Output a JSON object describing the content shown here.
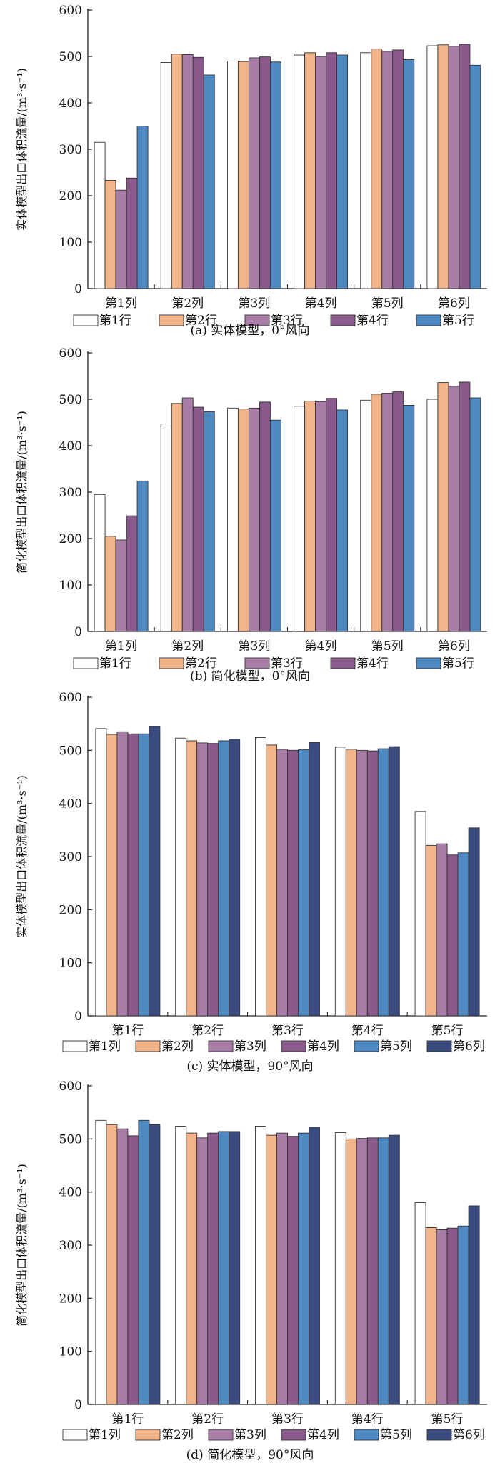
{
  "colors": {
    "row_series": [
      "#ffffff",
      "#f2b48a",
      "#a77ca6",
      "#8a5a8c",
      "#4f89c2"
    ],
    "col_series": [
      "#ffffff",
      "#f2b48a",
      "#a77ca6",
      "#8a5a8c",
      "#4f89c2",
      "#3a4b80"
    ]
  },
  "chart_data": [
    {
      "type": "bar",
      "caption": "(a) 实体模型，0°风向",
      "ylabel": "实体模型出口体积流量/(m³·s⁻¹)",
      "ylim": [
        0,
        600
      ],
      "yticks": [
        "0",
        "100",
        "200",
        "300",
        "400",
        "500",
        "600"
      ],
      "categories": [
        "第1列",
        "第2列",
        "第3列",
        "第4列",
        "第5列",
        "第6列"
      ],
      "legend_placement": "bottom",
      "series": [
        {
          "name": "第1行",
          "values": [
            315,
            487,
            490,
            503,
            508,
            523
          ]
        },
        {
          "name": "第2行",
          "values": [
            233,
            505,
            489,
            508,
            516,
            525
          ]
        },
        {
          "name": "第3行",
          "values": [
            212,
            504,
            497,
            500,
            511,
            522
          ]
        },
        {
          "name": "第4行",
          "values": [
            238,
            498,
            499,
            508,
            514,
            526
          ]
        },
        {
          "name": "第5行",
          "values": [
            350,
            460,
            488,
            503,
            493,
            481
          ]
        }
      ]
    },
    {
      "type": "bar",
      "caption": "(b) 简化模型，0°风向",
      "ylabel": "简化模型出口体积流量/(m³·s⁻¹)",
      "ylim": [
        0,
        600
      ],
      "yticks": [
        "0",
        "100",
        "200",
        "300",
        "400",
        "500",
        "600"
      ],
      "categories": [
        "第1列",
        "第2列",
        "第3列",
        "第4列",
        "第5列",
        "第6列"
      ],
      "legend_placement": "bottom",
      "series": [
        {
          "name": "第1行",
          "values": [
            295,
            447,
            481,
            485,
            498,
            500
          ]
        },
        {
          "name": "第2行",
          "values": [
            205,
            491,
            479,
            496,
            511,
            536
          ]
        },
        {
          "name": "第3行",
          "values": [
            197,
            503,
            481,
            495,
            513,
            528
          ]
        },
        {
          "name": "第4行",
          "values": [
            249,
            483,
            494,
            502,
            516,
            537
          ]
        },
        {
          "name": "第5行",
          "values": [
            324,
            473,
            455,
            477,
            487,
            503
          ]
        }
      ]
    },
    {
      "type": "bar",
      "caption": "(c) 实体模型，90°风向",
      "ylabel": "实体模型出口体积流量/(m³·s⁻¹)",
      "ylim": [
        0,
        600
      ],
      "yticks": [
        "0",
        "100",
        "200",
        "300",
        "400",
        "500",
        "600"
      ],
      "categories": [
        "第1行",
        "第2行",
        "第3行",
        "第4行",
        "第5行"
      ],
      "legend_placement": "bottom",
      "series": [
        {
          "name": "第1列",
          "values": [
            541,
            523,
            524,
            506,
            385
          ]
        },
        {
          "name": "第2列",
          "values": [
            530,
            518,
            510,
            502,
            321
          ]
        },
        {
          "name": "第3列",
          "values": [
            535,
            514,
            502,
            500,
            324
          ]
        },
        {
          "name": "第4列",
          "values": [
            531,
            513,
            500,
            499,
            303
          ]
        },
        {
          "name": "第5列",
          "values": [
            531,
            518,
            501,
            503,
            307
          ]
        },
        {
          "name": "第6列",
          "values": [
            545,
            521,
            515,
            507,
            354
          ]
        }
      ]
    },
    {
      "type": "bar",
      "caption": "(d) 简化模型，90°风向",
      "ylabel": "简化模型出口体积流量/(m³·s⁻¹)",
      "ylim": [
        0,
        600
      ],
      "yticks": [
        "0",
        "100",
        "200",
        "300",
        "400",
        "500",
        "600"
      ],
      "categories": [
        "第1行",
        "第2行",
        "第3行",
        "第4行",
        "第5行"
      ],
      "legend_placement": "bottom",
      "series": [
        {
          "name": "第1列",
          "values": [
            535,
            524,
            524,
            512,
            380
          ]
        },
        {
          "name": "第2列",
          "values": [
            527,
            511,
            507,
            500,
            333
          ]
        },
        {
          "name": "第3列",
          "values": [
            519,
            502,
            511,
            501,
            329
          ]
        },
        {
          "name": "第4列",
          "values": [
            506,
            511,
            505,
            502,
            332
          ]
        },
        {
          "name": "第5列",
          "values": [
            535,
            514,
            511,
            502,
            336
          ]
        },
        {
          "name": "第6列",
          "values": [
            527,
            514,
            522,
            507,
            374
          ]
        }
      ]
    }
  ]
}
